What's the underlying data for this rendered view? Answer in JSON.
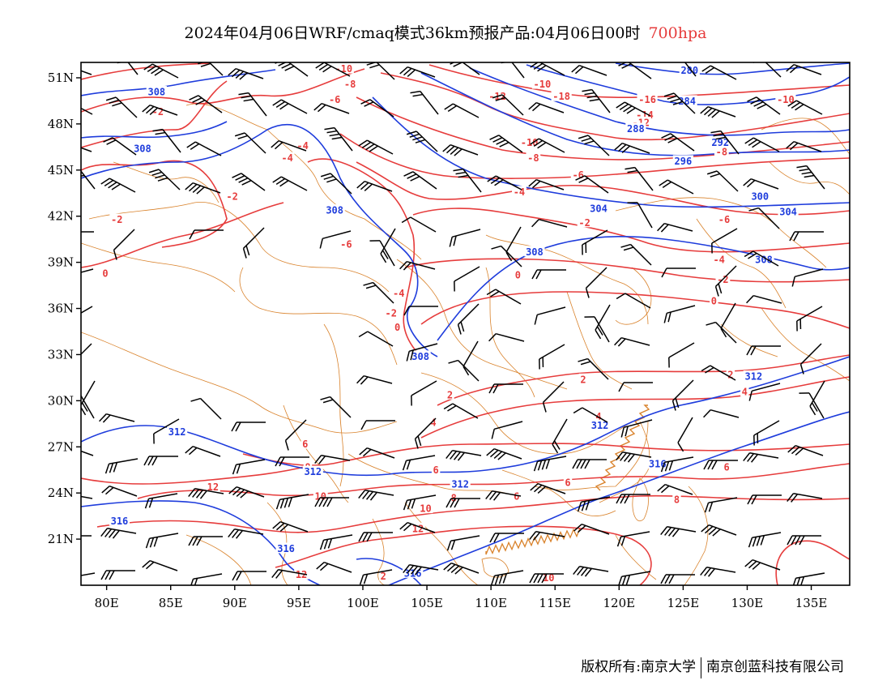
{
  "title": {
    "text": "2024年04月06日WRF/cmaq模式36km预报产品:04月06日00时",
    "level": "700hpa",
    "level_color": "#e63c3c"
  },
  "axes": {
    "x_ticks": [
      "80E",
      "85E",
      "90E",
      "95E",
      "100E",
      "105E",
      "110E",
      "115E",
      "120E",
      "125E",
      "130E",
      "135E"
    ],
    "y_ticks": [
      "51N",
      "48N",
      "45N",
      "42N",
      "39N",
      "36N",
      "33N",
      "30N",
      "27N",
      "24N",
      "21N"
    ],
    "lon_range": [
      78,
      138
    ],
    "lat_range": [
      18,
      52
    ]
  },
  "colors": {
    "temperature": "#e63c3c",
    "geopotential": "#1e3cdc",
    "boundary": "#d9822b",
    "wind": "#000000"
  },
  "temperature_labels": [
    {
      "text": "-10",
      "lon": 98.5,
      "lat": 51.6
    },
    {
      "text": "-8",
      "lon": 99,
      "lat": 50.6
    },
    {
      "text": "-6",
      "lon": 97.8,
      "lat": 49.6
    },
    {
      "text": "-2",
      "lon": 84,
      "lat": 48.8
    },
    {
      "text": "-4",
      "lon": 95.3,
      "lat": 46.6
    },
    {
      "text": "-4",
      "lon": 94.1,
      "lat": 45.8
    },
    {
      "text": "-2",
      "lon": 89.8,
      "lat": 43.3
    },
    {
      "text": "-2",
      "lon": 80.8,
      "lat": 41.8
    },
    {
      "text": "-6",
      "lon": 98.7,
      "lat": 40.2
    },
    {
      "text": "0",
      "lon": 79.9,
      "lat": 38.3
    },
    {
      "text": "-4",
      "lon": 102.8,
      "lat": 37.0
    },
    {
      "text": "-2",
      "lon": 102.2,
      "lat": 35.7
    },
    {
      "text": "0",
      "lon": 102.7,
      "lat": 34.8
    },
    {
      "text": "-12",
      "lon": 110.5,
      "lat": 49.8
    },
    {
      "text": "-10",
      "lon": 114,
      "lat": 50.6
    },
    {
      "text": "-18",
      "lon": 115.5,
      "lat": 49.8
    },
    {
      "text": "-16",
      "lon": 122.2,
      "lat": 49.6
    },
    {
      "text": "-14",
      "lon": 122,
      "lat": 48.6
    },
    {
      "text": "-12",
      "lon": 121.7,
      "lat": 48.1
    },
    {
      "text": "-10",
      "lon": 133,
      "lat": 49.6
    },
    {
      "text": "-10",
      "lon": 113,
      "lat": 46.8
    },
    {
      "text": "-8",
      "lon": 113.3,
      "lat": 45.8
    },
    {
      "text": "-8",
      "lon": 128,
      "lat": 46.2
    },
    {
      "text": "-6",
      "lon": 116.8,
      "lat": 44.7
    },
    {
      "text": "-4",
      "lon": 112.2,
      "lat": 43.6
    },
    {
      "text": "-2",
      "lon": 117.3,
      "lat": 41.6
    },
    {
      "text": "-6",
      "lon": 128.2,
      "lat": 41.8
    },
    {
      "text": "-4",
      "lon": 127.8,
      "lat": 39.2
    },
    {
      "text": "-2",
      "lon": 128.1,
      "lat": 37.9
    },
    {
      "text": "0",
      "lon": 112.1,
      "lat": 38.2
    },
    {
      "text": "0",
      "lon": 127.4,
      "lat": 36.5
    },
    {
      "text": "2",
      "lon": 117.2,
      "lat": 31.4
    },
    {
      "text": "2",
      "lon": 128.7,
      "lat": 31.7
    },
    {
      "text": "4",
      "lon": 129.8,
      "lat": 30.6
    },
    {
      "text": "2",
      "lon": 106.8,
      "lat": 30.4
    },
    {
      "text": "4",
      "lon": 105.5,
      "lat": 28.6
    },
    {
      "text": "4",
      "lon": 118.4,
      "lat": 29.0
    },
    {
      "text": "6",
      "lon": 95.5,
      "lat": 27.2
    },
    {
      "text": "6",
      "lon": 105.7,
      "lat": 25.5
    },
    {
      "text": "8",
      "lon": 95.7,
      "lat": 25.7
    },
    {
      "text": "6",
      "lon": 128.4,
      "lat": 25.7
    },
    {
      "text": "6",
      "lon": 116,
      "lat": 24.7
    },
    {
      "text": "8",
      "lon": 107.1,
      "lat": 23.7
    },
    {
      "text": "6",
      "lon": 112,
      "lat": 23.8
    },
    {
      "text": "12",
      "lon": 88.3,
      "lat": 24.4
    },
    {
      "text": "10",
      "lon": 96.7,
      "lat": 23.8
    },
    {
      "text": "10",
      "lon": 104.9,
      "lat": 23.0
    },
    {
      "text": "8",
      "lon": 124.5,
      "lat": 23.6
    },
    {
      "text": "12",
      "lon": 104.3,
      "lat": 21.7
    },
    {
      "text": "12",
      "lon": 95.2,
      "lat": 18.7
    },
    {
      "text": "10",
      "lon": 114.5,
      "lat": 18.5
    },
    {
      "text": "2",
      "lon": 101.6,
      "lat": 18.6
    }
  ],
  "geopotential_labels": [
    {
      "text": "308",
      "lon": 83.9,
      "lat": 50.1
    },
    {
      "text": "308",
      "lon": 82.8,
      "lat": 46.4
    },
    {
      "text": "308",
      "lon": 97.8,
      "lat": 42.4
    },
    {
      "text": "308",
      "lon": 113.4,
      "lat": 39.7
    },
    {
      "text": "308",
      "lon": 104.5,
      "lat": 32.9
    },
    {
      "text": "304",
      "lon": 118.4,
      "lat": 42.5
    },
    {
      "text": "304",
      "lon": 133.2,
      "lat": 42.3
    },
    {
      "text": "300",
      "lon": 131,
      "lat": 43.3
    },
    {
      "text": "296",
      "lon": 125,
      "lat": 45.6
    },
    {
      "text": "292",
      "lon": 127.9,
      "lat": 46.8
    },
    {
      "text": "288",
      "lon": 121.3,
      "lat": 47.7
    },
    {
      "text": "284",
      "lon": 125.3,
      "lat": 49.5
    },
    {
      "text": "280",
      "lon": 125.5,
      "lat": 51.5
    },
    {
      "text": "308",
      "lon": 131.3,
      "lat": 39.2
    },
    {
      "text": "312",
      "lon": 130.5,
      "lat": 31.6
    },
    {
      "text": "312",
      "lon": 118.5,
      "lat": 28.4
    },
    {
      "text": "312",
      "lon": 85.5,
      "lat": 28.0
    },
    {
      "text": "312",
      "lon": 96.1,
      "lat": 25.4
    },
    {
      "text": "312",
      "lon": 107.6,
      "lat": 24.6
    },
    {
      "text": "316",
      "lon": 123,
      "lat": 25.9
    },
    {
      "text": "316",
      "lon": 81,
      "lat": 22.2
    },
    {
      "text": "316",
      "lon": 94,
      "lat": 20.4
    },
    {
      "text": "316",
      "lon": 103.9,
      "lat": 18.8
    }
  ],
  "copyright": {
    "left": "版权所有:南京大学",
    "right": "南京创蓝科技有限公司"
  }
}
